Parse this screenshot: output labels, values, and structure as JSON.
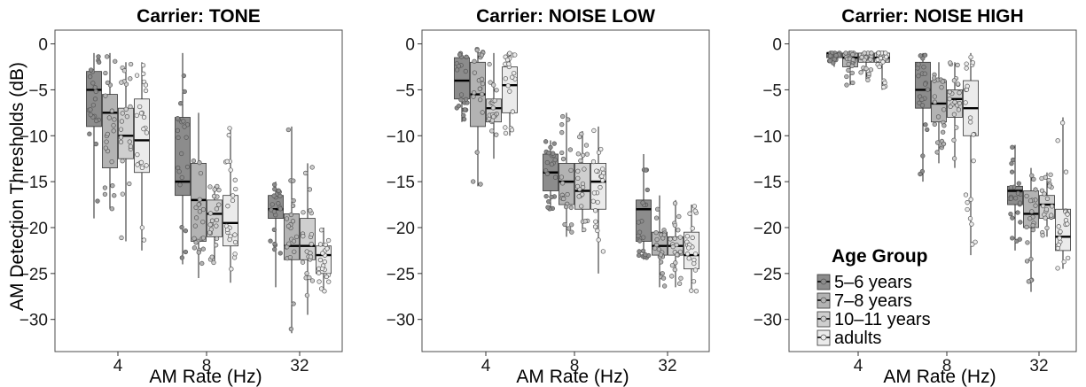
{
  "chart_data": [
    {
      "type": "box",
      "title": "Carrier: TONE",
      "xlabel": "AM Rate (Hz)",
      "ylabel": "AM Detection Thresholds (dB)",
      "categories": [
        "4",
        "8",
        "32"
      ],
      "ylim": [
        -33.5,
        1.5
      ],
      "yticks": [
        0,
        -5,
        -10,
        -15,
        -20,
        -25,
        -30
      ],
      "series": [
        {
          "name": "5–6 years",
          "color": "#8c8c8c",
          "boxes": [
            {
              "min": -19,
              "q1": -9,
              "median": -5,
              "q3": -3,
              "max": -1
            },
            {
              "min": -24,
              "q1": -16.5,
              "median": -15,
              "q3": -8,
              "max": -1
            },
            {
              "min": -26.5,
              "q1": -19,
              "median": -18,
              "q3": -16.5,
              "max": -15
            }
          ]
        },
        {
          "name": "7–8 years",
          "color": "#b3b3b3",
          "boxes": [
            {
              "min": -18,
              "q1": -13.5,
              "median": -7.5,
              "q3": -5.5,
              "max": -1
            },
            {
              "min": -25.5,
              "q1": -21.5,
              "median": -17,
              "q3": -13,
              "max": -7.5
            },
            {
              "min": -31.5,
              "q1": -23.5,
              "median": -22,
              "q3": -18.5,
              "max": -9
            }
          ]
        },
        {
          "name": "10–11 years",
          "color": "#cfcfcf",
          "boxes": [
            {
              "min": -21.5,
              "q1": -12.5,
              "median": -10,
              "q3": -7,
              "max": -2
            },
            {
              "min": -24,
              "q1": -21,
              "median": -18.5,
              "q3": -17,
              "max": -15.5
            },
            {
              "min": -29.5,
              "q1": -23.5,
              "median": -22,
              "q3": -19,
              "max": -13
            }
          ]
        },
        {
          "name": "adults",
          "color": "#ebebeb",
          "boxes": [
            {
              "min": -22.5,
              "q1": -14,
              "median": -10.5,
              "q3": -6,
              "max": -2
            },
            {
              "min": -26,
              "q1": -22,
              "median": -19.5,
              "q3": -16.5,
              "max": -9
            },
            {
              "min": -27,
              "q1": -25,
              "median": -23,
              "q3": -22,
              "max": -20
            }
          ]
        }
      ]
    },
    {
      "type": "box",
      "title": "Carrier: NOISE LOW",
      "xlabel": "AM Rate (Hz)",
      "ylabel": "",
      "categories": [
        "4",
        "8",
        "32"
      ],
      "ylim": [
        -33.5,
        1.5
      ],
      "yticks": [
        0,
        -5,
        -10,
        -15,
        -20,
        -25,
        -30
      ],
      "series": [
        {
          "name": "5–6 years",
          "color": "#8c8c8c",
          "boxes": [
            {
              "min": -8.5,
              "q1": -6,
              "median": -4,
              "q3": -1.5,
              "max": -1
            },
            {
              "min": -18,
              "q1": -16,
              "median": -14,
              "q3": -12,
              "max": -10.5
            },
            {
              "min": -23.5,
              "q1": -21.5,
              "median": -18,
              "q3": -17,
              "max": -12
            }
          ]
        },
        {
          "name": "7–8 years",
          "color": "#b3b3b3",
          "boxes": [
            {
              "min": -15.5,
              "q1": -9,
              "median": -5.5,
              "q3": -2,
              "max": -0.5
            },
            {
              "min": -21,
              "q1": -17.5,
              "median": -15,
              "q3": -13,
              "max": -7.5
            },
            {
              "min": -26.5,
              "q1": -23,
              "median": -22,
              "q3": -20.5,
              "max": -16.5
            }
          ]
        },
        {
          "name": "10–11 years",
          "color": "#cfcfcf",
          "boxes": [
            {
              "min": -12.5,
              "q1": -8.5,
              "median": -7,
              "q3": -6,
              "max": -1
            },
            {
              "min": -20.5,
              "q1": -18,
              "median": -16,
              "q3": -13,
              "max": -9.5
            },
            {
              "min": -26.5,
              "q1": -23,
              "median": -22,
              "q3": -21,
              "max": -17
            }
          ]
        },
        {
          "name": "adults",
          "color": "#ebebeb",
          "boxes": [
            {
              "min": -10,
              "q1": -7.5,
              "median": -4.5,
              "q3": -2.5,
              "max": -1
            },
            {
              "min": -25,
              "q1": -18,
              "median": -15,
              "q3": -13,
              "max": -9
            },
            {
              "min": -27,
              "q1": -24.5,
              "median": -23,
              "q3": -20.5,
              "max": -17.5
            }
          ]
        }
      ]
    },
    {
      "type": "box",
      "title": "Carrier: NOISE HIGH",
      "xlabel": "AM Rate (Hz)",
      "ylabel": "",
      "categories": [
        "4",
        "8",
        "32"
      ],
      "ylim": [
        -33.5,
        1.5
      ],
      "yticks": [
        0,
        -5,
        -10,
        -15,
        -20,
        -25,
        -30
      ],
      "legend": {
        "title": "Age Group",
        "entries": [
          "5–6 years",
          "7–8 years",
          "10–11 years",
          "adults"
        ],
        "position": "bottom-left"
      },
      "series": [
        {
          "name": "5–6 years",
          "color": "#8c8c8c",
          "boxes": [
            {
              "min": -2.5,
              "q1": -1.5,
              "median": -1,
              "q3": -1,
              "max": -1
            },
            {
              "min": -15,
              "q1": -7,
              "median": -5,
              "q3": -2,
              "max": -1
            },
            {
              "min": -22.5,
              "q1": -17.5,
              "median": -16,
              "q3": -15.5,
              "max": -11
            }
          ]
        },
        {
          "name": "7–8 years",
          "color": "#b3b3b3",
          "boxes": [
            {
              "min": -4.5,
              "q1": -2.5,
              "median": -1.5,
              "q3": -1,
              "max": -1
            },
            {
              "min": -13,
              "q1": -8.5,
              "median": -6.5,
              "q3": -4,
              "max": -2
            },
            {
              "min": -27,
              "q1": -20,
              "median": -18.5,
              "q3": -16,
              "max": -13.5
            }
          ]
        },
        {
          "name": "10–11 years",
          "color": "#cfcfcf",
          "boxes": [
            {
              "min": -4,
              "q1": -2,
              "median": -1.5,
              "q3": -1,
              "max": -1
            },
            {
              "min": -13.5,
              "q1": -8,
              "median": -6,
              "q3": -5,
              "max": -2
            },
            {
              "min": -21,
              "q1": -19,
              "median": -17.5,
              "q3": -16.5,
              "max": -14
            }
          ]
        },
        {
          "name": "adults",
          "color": "#ebebeb",
          "boxes": [
            {
              "min": -5,
              "q1": -2,
              "median": -1.5,
              "q3": -1,
              "max": -1
            },
            {
              "min": -23,
              "q1": -10,
              "median": -7,
              "q3": -4,
              "max": -1
            },
            {
              "min": -24.5,
              "q1": -22.5,
              "median": -21,
              "q3": -18,
              "max": -8
            }
          ]
        }
      ]
    }
  ]
}
